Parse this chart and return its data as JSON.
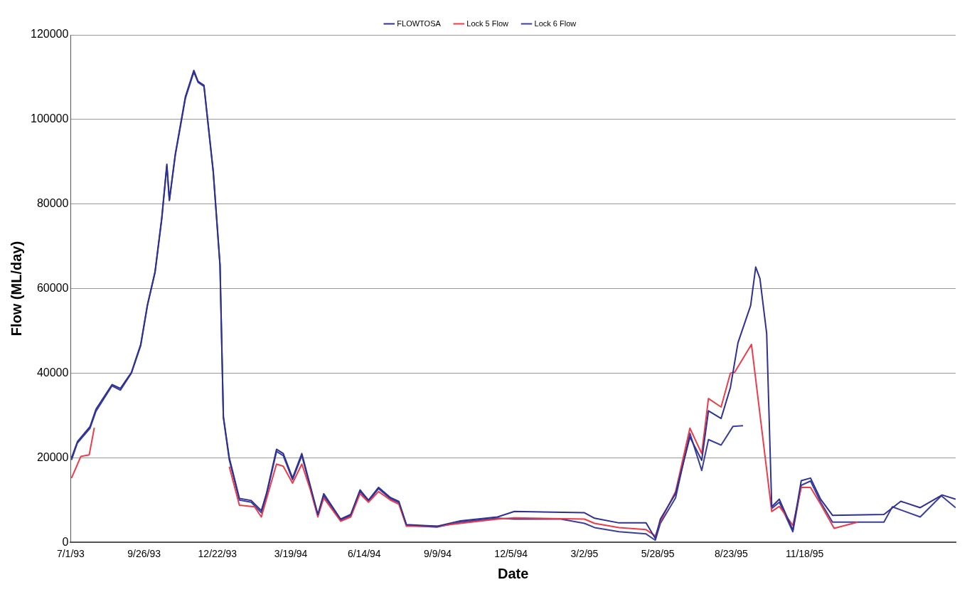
{
  "chart_data": {
    "type": "line",
    "xlabel": "Date",
    "ylabel": "Flow (ML/day)",
    "legend": "top",
    "grid": "y",
    "marker": "none",
    "line_style": "solid",
    "xlim": [
      "1993-07-01",
      "1996-05-15"
    ],
    "xticks": [
      {
        "value": "1993-07-01",
        "label": "7/1/93"
      },
      {
        "value": "1993-09-26",
        "label": "9/26/93"
      },
      {
        "value": "1993-12-22",
        "label": "12/22/93"
      },
      {
        "value": "1994-03-19",
        "label": "3/19/94"
      },
      {
        "value": "1994-06-14",
        "label": "6/14/94"
      },
      {
        "value": "1994-09-09",
        "label": "9/9/94"
      },
      {
        "value": "1994-12-05",
        "label": "12/5/94"
      },
      {
        "value": "1995-03-02",
        "label": "3/2/95"
      },
      {
        "value": "1995-05-28",
        "label": "5/28/95"
      },
      {
        "value": "1995-08-23",
        "label": "8/23/95"
      },
      {
        "value": "1995-11-18",
        "label": "11/18/95"
      }
    ],
    "ylim": [
      0,
      120000
    ],
    "yticks": [
      0,
      20000,
      40000,
      60000,
      80000,
      100000,
      120000
    ],
    "series": [
      {
        "name": "FLOWTOSA",
        "color": "#2e3192",
        "x": [
          "1993-07-02",
          "1993-07-09",
          "1993-07-24",
          "1993-07-31",
          "1993-08-19",
          "1993-08-29",
          "1993-09-11",
          "1993-09-22",
          "1993-09-30",
          "1993-10-09",
          "1993-10-17",
          "1993-10-23",
          "1993-10-26",
          "1993-11-02",
          "1993-11-14",
          "1993-11-24",
          "1993-11-29",
          "1993-12-06",
          "1993-12-17",
          "1993-12-25",
          "1993-12-29",
          "1994-01-05",
          "1994-01-17",
          "1994-01-31",
          "1994-02-12",
          "1994-02-18",
          "1994-03-02",
          "1994-03-10",
          "1994-03-21",
          "1994-04-01",
          "1994-04-11",
          "1994-04-20",
          "1994-04-27",
          "1994-05-17",
          "1994-05-29",
          "1994-06-09",
          "1994-06-19",
          "1994-07-01",
          "1994-07-15",
          "1994-07-25",
          "1994-08-03",
          "1994-09-08",
          "1994-10-06",
          "1994-11-19",
          "1994-12-09",
          "1995-03-02",
          "1995-03-14",
          "1995-04-12",
          "1995-05-14",
          "1995-05-25",
          "1995-05-31",
          "1995-06-18",
          "1995-07-05",
          "1995-07-19",
          "1995-07-27",
          "1995-08-11",
          "1995-08-22",
          "1995-08-31",
          "1995-09-15",
          "1995-09-21",
          "1995-09-26",
          "1995-10-04",
          "1995-10-10",
          "1995-10-19",
          "1995-11-04",
          "1995-11-14",
          "1995-11-25",
          "1995-12-07",
          "1995-12-21",
          "1996-02-20",
          "1996-03-11",
          "1996-04-03",
          "1996-04-29",
          "1996-05-15"
        ],
        "values": [
          20000,
          23800,
          27400,
          31500,
          37300,
          36400,
          40200,
          46800,
          56200,
          64000,
          76800,
          89400,
          81000,
          91800,
          105400,
          111600,
          109000,
          108100,
          87800,
          65700,
          29800,
          20000,
          10400,
          9900,
          7500,
          11500,
          22000,
          21000,
          15200,
          21000,
          13400,
          6600,
          11500,
          5500,
          6600,
          12400,
          10000,
          13000,
          10600,
          9700,
          4200,
          3800,
          5100,
          6000,
          7300,
          7000,
          5700,
          4600,
          4600,
          900,
          5500,
          11500,
          24900,
          19400,
          31100,
          29300,
          36600,
          47200,
          56000,
          65100,
          62400,
          49400,
          8400,
          10200,
          2900,
          14600,
          15200,
          10200,
          6400,
          6600,
          9700,
          8200,
          11200,
          10200
        ]
      },
      {
        "name": "Lock 5 Flow",
        "color": "#ed3b4a",
        "x": [
          "1993-07-02",
          "1993-07-13",
          "1993-07-23",
          "1993-07-29",
          "1993-10-01",
          "1994-01-05",
          "1994-01-17",
          "1994-02-04",
          "1994-02-12",
          "1994-03-02",
          "1994-03-10",
          "1994-03-21",
          "1994-04-01",
          "1994-04-11",
          "1994-04-20",
          "1994-04-27",
          "1994-05-17",
          "1994-05-29",
          "1994-06-09",
          "1994-06-19",
          "1994-07-01",
          "1994-07-15",
          "1994-07-25",
          "1994-08-03",
          "1994-09-08",
          "1994-10-06",
          "1994-11-19",
          "1994-12-09",
          "1995-03-02",
          "1995-03-14",
          "1995-04-12",
          "1995-05-14",
          "1995-05-25",
          "1995-05-31",
          "1995-06-18",
          "1995-07-05",
          "1995-07-19",
          "1995-07-27",
          "1995-08-11",
          "1995-08-22",
          "1995-08-27",
          "1995-09-16",
          "1995-10-10",
          "1995-10-19",
          "1995-11-04",
          "1995-11-14",
          "1995-11-25",
          "1995-12-07",
          "1995-12-23",
          "1996-01-20"
        ],
        "values": [
          15200,
          20300,
          20700,
          27100,
          null,
          17900,
          8800,
          8400,
          6000,
          18500,
          18000,
          14000,
          18500,
          12500,
          6000,
          10500,
          5000,
          6000,
          11500,
          9500,
          12000,
          10000,
          9000,
          3800,
          3800,
          4500,
          5500,
          5800,
          5500,
          4500,
          3500,
          3000,
          1500,
          5000,
          12000,
          27000,
          21000,
          34000,
          32000,
          40000,
          40200,
          46800,
          7300,
          8500,
          4000,
          13000,
          13000,
          9000,
          3300,
          4800
        ]
      },
      {
        "name": "Lock 6 Flow",
        "color": "#3a3f9e",
        "x": [
          "1993-07-02",
          "1993-07-09",
          "1993-07-24",
          "1993-07-31",
          "1993-08-19",
          "1993-08-29",
          "1993-09-11",
          "1993-09-22",
          "1993-09-30",
          "1993-10-09",
          "1993-10-17",
          "1993-10-23",
          "1993-10-26",
          "1993-11-02",
          "1993-11-14",
          "1993-11-24",
          "1993-11-29",
          "1993-12-06",
          "1993-12-17",
          "1993-12-25",
          "1993-12-29",
          "1994-01-05",
          "1994-01-17",
          "1994-01-31",
          "1994-02-12",
          "1994-02-18",
          "1994-03-02",
          "1994-03-10",
          "1994-03-21",
          "1994-04-01",
          "1994-04-11",
          "1994-04-20",
          "1994-04-27",
          "1994-05-17",
          "1994-05-29",
          "1994-06-09",
          "1994-06-19",
          "1994-07-01",
          "1994-07-15",
          "1994-07-25",
          "1994-08-03",
          "1994-09-08",
          "1994-10-06",
          "1994-11-19",
          "1994-12-09",
          "1995-02-02",
          "1995-03-02",
          "1995-03-14",
          "1995-04-12",
          "1995-05-14",
          "1995-05-25",
          "1995-05-31",
          "1995-06-18",
          "1995-07-05",
          "1995-07-19",
          "1995-07-27",
          "1995-08-11",
          "1995-08-25",
          "1995-09-06",
          "1995-09-20",
          "1995-10-10",
          "1995-10-19",
          "1995-11-04",
          "1995-11-14",
          "1995-11-25",
          "1995-12-07",
          "1995-12-21",
          "1996-02-20",
          "1996-03-01",
          "1996-04-03",
          "1996-04-28",
          "1996-05-15"
        ],
        "values": [
          19500,
          23500,
          27000,
          31000,
          37000,
          36000,
          40000,
          46500,
          56000,
          63800,
          76500,
          89000,
          80800,
          91500,
          105000,
          111200,
          108800,
          107800,
          87500,
          65500,
          29500,
          19500,
          10000,
          9500,
          7000,
          11000,
          21500,
          20500,
          14800,
          20500,
          13000,
          6300,
          11000,
          5200,
          6300,
          12000,
          9700,
          12700,
          10300,
          9400,
          4000,
          3600,
          4800,
          5700,
          5500,
          5500,
          4500,
          3500,
          2500,
          2000,
          500,
          4500,
          10500,
          25800,
          17000,
          24300,
          23000,
          27400,
          27600,
          null,
          8000,
          9500,
          2500,
          13500,
          14500,
          9500,
          4800,
          4800,
          8400,
          6000,
          11000,
          8200
        ]
      }
    ]
  }
}
